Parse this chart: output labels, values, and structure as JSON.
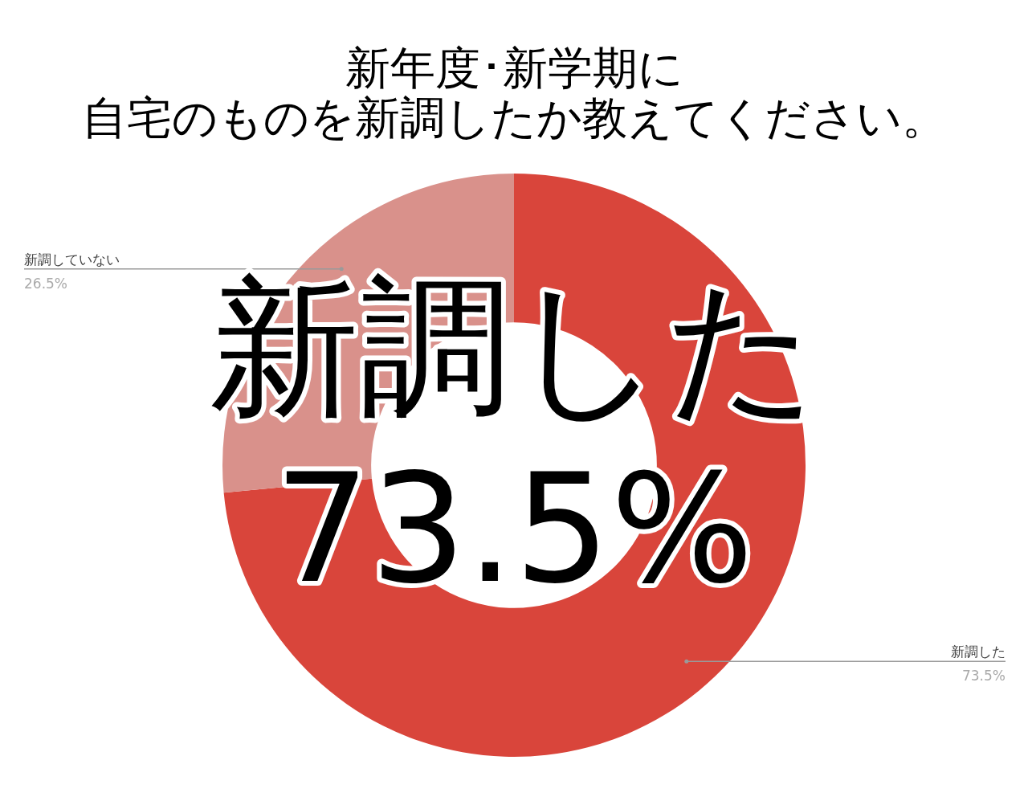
{
  "chart_data": {
    "type": "donut",
    "title": "新年度･新学期に",
    "subtitle": "自宅のものを新調したか教えてください。",
    "categories": [
      "新調した",
      "新調していない"
    ],
    "values": [
      73.5,
      26.5
    ],
    "colors": [
      "#d9453b",
      "#d9918b"
    ],
    "value_labels": [
      "73.5%",
      "26.5%"
    ],
    "annotations": [
      "新調した",
      "73.5%"
    ],
    "legend": false
  }
}
